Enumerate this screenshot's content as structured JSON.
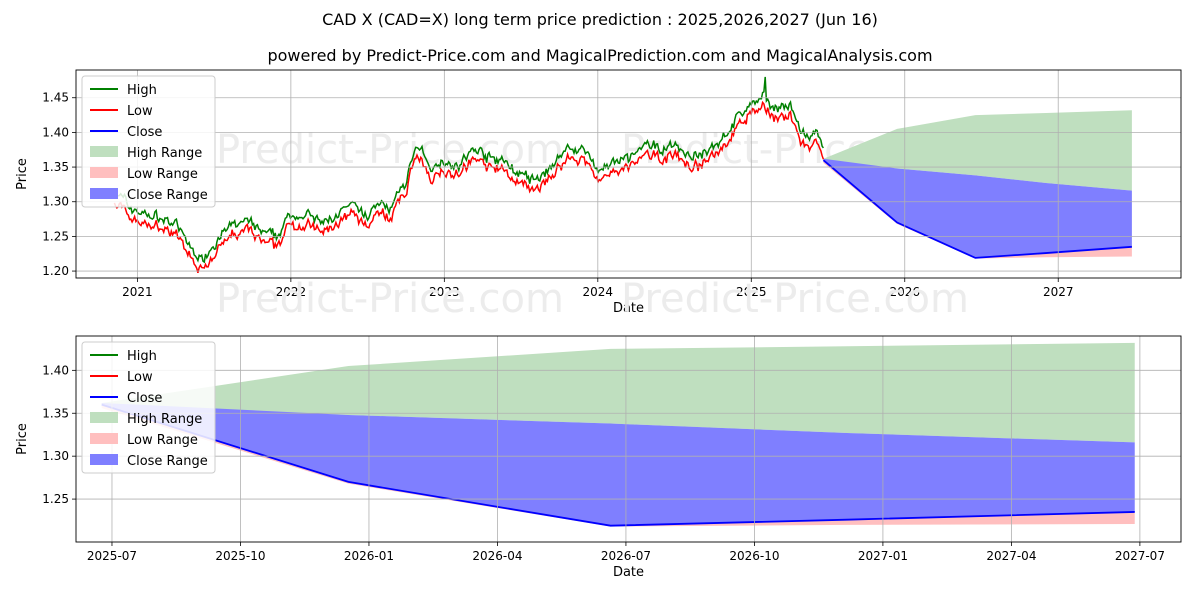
{
  "title": "CAD X (CAD=X) long term price prediction : 2025,2026,2027 (Jun 16)",
  "subtitle": "powered by Predict-Price.com and MagicalPrediction.com and MagicalAnalysis.com",
  "watermark": "Predict-Price.com",
  "colors": {
    "high": "#008000",
    "low": "#ff0000",
    "close": "#0000ff",
    "high_range": "#bfdfbf",
    "low_range": "#ffbfbf",
    "close_range": "#7f7fff",
    "grid": "#b0b0b0",
    "watermark": "#ececec"
  },
  "chart_data": [
    {
      "type": "line",
      "title": "",
      "xlabel": "Date",
      "ylabel": "Price",
      "xlim": [
        2020.6,
        2027.8
      ],
      "ylim": [
        1.19,
        1.49
      ],
      "x_ticks": [
        2021,
        2022,
        2023,
        2024,
        2025,
        2026,
        2027
      ],
      "x_tick_labels": [
        "2021",
        "2022",
        "2023",
        "2024",
        "2025",
        "2026",
        "2027"
      ],
      "y_ticks": [
        1.2,
        1.25,
        1.3,
        1.35,
        1.4,
        1.45
      ],
      "y_tick_labels": [
        "1.20",
        "1.25",
        "1.30",
        "1.35",
        "1.40",
        "1.45"
      ],
      "legend": [
        "High",
        "Low",
        "Close",
        "High Range",
        "Low Range",
        "Close Range"
      ],
      "legend_position": "top-left",
      "history_anchors": [
        [
          2020.85,
          1.31
        ],
        [
          2020.95,
          1.285
        ],
        [
          2021.05,
          1.275
        ],
        [
          2021.15,
          1.27
        ],
        [
          2021.25,
          1.26
        ],
        [
          2021.35,
          1.225
        ],
        [
          2021.42,
          1.21
        ],
        [
          2021.5,
          1.235
        ],
        [
          2021.6,
          1.255
        ],
        [
          2021.7,
          1.265
        ],
        [
          2021.8,
          1.25
        ],
        [
          2021.9,
          1.24
        ],
        [
          2022.0,
          1.275
        ],
        [
          2022.1,
          1.275
        ],
        [
          2022.2,
          1.26
        ],
        [
          2022.3,
          1.275
        ],
        [
          2022.4,
          1.285
        ],
        [
          2022.5,
          1.27
        ],
        [
          2022.55,
          1.29
        ],
        [
          2022.65,
          1.285
        ],
        [
          2022.75,
          1.32
        ],
        [
          2022.8,
          1.37
        ],
        [
          2022.85,
          1.365
        ],
        [
          2022.9,
          1.34
        ],
        [
          2023.0,
          1.355
        ],
        [
          2023.1,
          1.345
        ],
        [
          2023.2,
          1.37
        ],
        [
          2023.3,
          1.355
        ],
        [
          2023.4,
          1.35
        ],
        [
          2023.5,
          1.33
        ],
        [
          2023.6,
          1.32
        ],
        [
          2023.7,
          1.345
        ],
        [
          2023.8,
          1.37
        ],
        [
          2023.9,
          1.37
        ],
        [
          2024.0,
          1.34
        ],
        [
          2024.1,
          1.345
        ],
        [
          2024.2,
          1.355
        ],
        [
          2024.3,
          1.37
        ],
        [
          2024.4,
          1.37
        ],
        [
          2024.5,
          1.375
        ],
        [
          2024.6,
          1.36
        ],
        [
          2024.7,
          1.36
        ],
        [
          2024.8,
          1.385
        ],
        [
          2024.9,
          1.41
        ],
        [
          2025.0,
          1.435
        ],
        [
          2025.08,
          1.44
        ],
        [
          2025.15,
          1.43
        ],
        [
          2025.25,
          1.43
        ],
        [
          2025.33,
          1.39
        ],
        [
          2025.42,
          1.385
        ],
        [
          2025.47,
          1.365
        ]
      ],
      "high_spike": [
        2025.09,
        1.48
      ],
      "forecast_x": [
        2025.47,
        2025.95,
        2026.46,
        2026.92,
        2027.48
      ],
      "high_range": {
        "upper": [
          1.362,
          1.405,
          1.425,
          1.428,
          1.432
        ],
        "lower": [
          1.358,
          1.348,
          1.338,
          1.327,
          1.316
        ]
      },
      "low_range": {
        "upper": [
          1.36,
          1.27,
          1.222,
          1.227,
          1.236
        ],
        "lower": [
          1.356,
          1.268,
          1.218,
          1.22,
          1.221
        ]
      },
      "close_range": {
        "upper": [
          1.362,
          1.348,
          1.338,
          1.327,
          1.316
        ]
      },
      "close_forecast": [
        1.36,
        1.27,
        1.219,
        1.226,
        1.235
      ]
    },
    {
      "type": "line",
      "title": "",
      "xlabel": "Date",
      "ylabel": "Price",
      "xlim": [
        2025.42,
        2027.57
      ],
      "ylim": [
        1.2,
        1.44
      ],
      "x_ticks": [
        2025.49,
        2025.74,
        2025.99,
        2026.24,
        2026.49,
        2026.74,
        2026.99,
        2027.24,
        2027.49
      ],
      "x_tick_labels": [
        "2025-07",
        "2025-10",
        "2026-01",
        "2026-04",
        "2026-07",
        "2026-10",
        "2027-01",
        "2027-04",
        "2027-07"
      ],
      "y_ticks": [
        1.25,
        1.3,
        1.35,
        1.4
      ],
      "y_tick_labels": [
        "1.25",
        "1.30",
        "1.35",
        "1.40"
      ],
      "legend": [
        "High",
        "Low",
        "Close",
        "High Range",
        "Low Range",
        "Close Range"
      ],
      "legend_position": "top-left",
      "forecast_x": [
        2025.47,
        2025.95,
        2026.46,
        2026.92,
        2027.48
      ],
      "high_range": {
        "upper": [
          1.362,
          1.405,
          1.425,
          1.428,
          1.432
        ],
        "lower": [
          1.358,
          1.348,
          1.338,
          1.327,
          1.316
        ]
      },
      "low_range": {
        "upper": [
          1.36,
          1.27,
          1.222,
          1.227,
          1.236
        ],
        "lower": [
          1.356,
          1.268,
          1.218,
          1.22,
          1.221
        ]
      },
      "close_range": {
        "upper": [
          1.362,
          1.348,
          1.338,
          1.327,
          1.316
        ]
      },
      "close_forecast": [
        1.36,
        1.27,
        1.219,
        1.226,
        1.235
      ]
    }
  ]
}
